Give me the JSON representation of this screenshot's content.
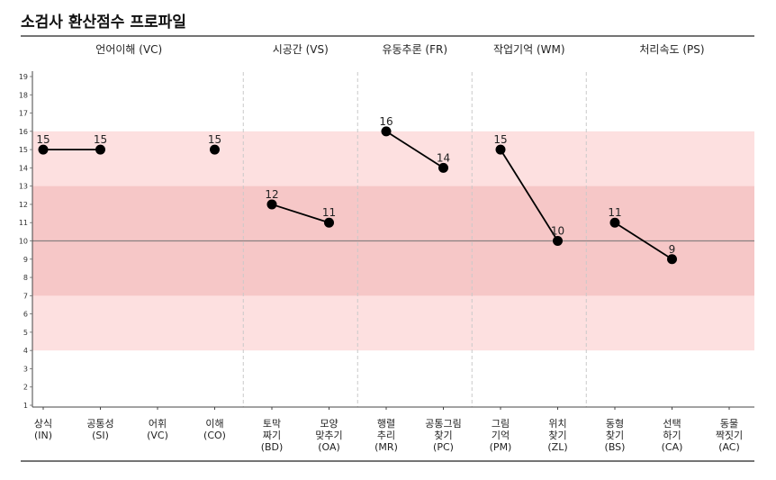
{
  "title": "소검사 환산점수 프로파일",
  "chart_data": {
    "type": "line",
    "title": "소검사 환산점수 프로파일",
    "ylim": [
      1,
      19
    ],
    "yticks": [
      1,
      2,
      3,
      4,
      5,
      6,
      7,
      8,
      9,
      10,
      11,
      12,
      13,
      14,
      15,
      16,
      17,
      18,
      19
    ],
    "mean_line": 10,
    "bands": [
      {
        "from": 4,
        "to": 16,
        "color": "#fde0e0"
      },
      {
        "from": 7,
        "to": 13,
        "color": "#f6c7c7"
      }
    ],
    "colors": {
      "marker": "#000000",
      "line": "#000000",
      "mean_line": "#8a8080",
      "divider": "#c9c9c9"
    },
    "groups": [
      {
        "name": "언어이해 (VC)",
        "start": 0,
        "end": 3
      },
      {
        "name": "시공간 (VS)",
        "start": 4,
        "end": 5
      },
      {
        "name": "유동추론 (FR)",
        "start": 6,
        "end": 7
      },
      {
        "name": "작업기억 (WM)",
        "start": 8,
        "end": 9
      },
      {
        "name": "처리속도 (PS)",
        "start": 10,
        "end": 12
      }
    ],
    "categories": [
      {
        "lines": [
          "상식",
          "(IN)"
        ],
        "value": 15
      },
      {
        "lines": [
          "공통성",
          "(SI)"
        ],
        "value": 15
      },
      {
        "lines": [
          "어휘",
          "(VC)"
        ],
        "value": null
      },
      {
        "lines": [
          "이해",
          "(CO)"
        ],
        "value": 15
      },
      {
        "lines": [
          "토막",
          "짜기",
          "(BD)"
        ],
        "value": 12
      },
      {
        "lines": [
          "모양",
          "맞추기",
          "(OA)"
        ],
        "value": 11
      },
      {
        "lines": [
          "행렬",
          "추리",
          "(MR)"
        ],
        "value": 16
      },
      {
        "lines": [
          "공통그림",
          "찾기",
          "(PC)"
        ],
        "value": 14
      },
      {
        "lines": [
          "그림",
          "기억",
          "(PM)"
        ],
        "value": 15
      },
      {
        "lines": [
          "위치",
          "찾기",
          "(ZL)"
        ],
        "value": 10
      },
      {
        "lines": [
          "동형",
          "찾기",
          "(BS)"
        ],
        "value": 11
      },
      {
        "lines": [
          "선택",
          "하기",
          "(CA)"
        ],
        "value": 9
      },
      {
        "lines": [
          "동물",
          "짝짓기",
          "(AC)"
        ],
        "value": null
      }
    ],
    "segments": [
      [
        0,
        1
      ],
      [
        4,
        5
      ],
      [
        6,
        7
      ],
      [
        8,
        9
      ],
      [
        10,
        11
      ]
    ]
  }
}
